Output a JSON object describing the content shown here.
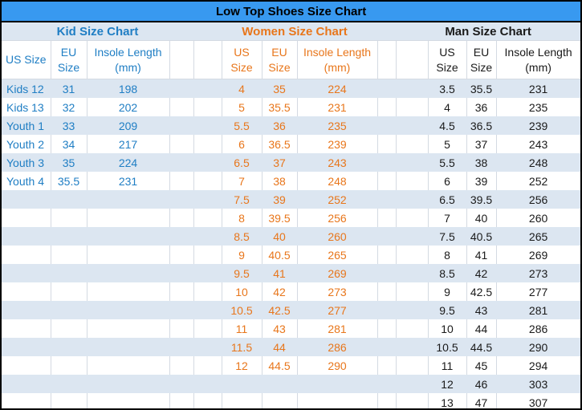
{
  "title": "Low Top Shoes Size Chart",
  "colors": {
    "title_bar_bg": "#3899F0",
    "band_row_bg": "#DCE6F1",
    "grid_line": "#D4DAE2",
    "kid_accent": "#1F7EC4",
    "women_accent": "#E8761B",
    "man_accent": "#1A1A1A",
    "outer_border": "#000000"
  },
  "chart_data": [
    {
      "type": "table",
      "key": "kid",
      "name": "Kid Size Chart",
      "color": "#1F7EC4",
      "columns": [
        "US Size",
        "EU Size",
        "Insole Length (mm)"
      ],
      "column_lines": [
        [
          "US Size"
        ],
        [
          "EU",
          "Size"
        ],
        [
          "Insole Length",
          "(mm)"
        ]
      ],
      "rows": [
        [
          "Kids 12",
          "31",
          "198"
        ],
        [
          "Kids 13",
          "32",
          "202"
        ],
        [
          "Youth 1",
          "33",
          "209"
        ],
        [
          "Youth 2",
          "34",
          "217"
        ],
        [
          "Youth 3",
          "35",
          "224"
        ],
        [
          "Youth 4",
          "35.5",
          "231"
        ]
      ]
    },
    {
      "type": "table",
      "key": "women",
      "name": "Women Size Chart",
      "color": "#E8761B",
      "columns": [
        "US Size",
        "EU Size",
        "Insole Length (mm)"
      ],
      "column_lines": [
        [
          "US",
          "Size"
        ],
        [
          "EU",
          "Size"
        ],
        [
          "Insole Length",
          "(mm)"
        ]
      ],
      "rows": [
        [
          "4",
          "35",
          "224"
        ],
        [
          "5",
          "35.5",
          "231"
        ],
        [
          "5.5",
          "36",
          "235"
        ],
        [
          "6",
          "36.5",
          "239"
        ],
        [
          "6.5",
          "37",
          "243"
        ],
        [
          "7",
          "38",
          "248"
        ],
        [
          "7.5",
          "39",
          "252"
        ],
        [
          "8",
          "39.5",
          "256"
        ],
        [
          "8.5",
          "40",
          "260"
        ],
        [
          "9",
          "40.5",
          "265"
        ],
        [
          "9.5",
          "41",
          "269"
        ],
        [
          "10",
          "42",
          "273"
        ],
        [
          "10.5",
          "42.5",
          "277"
        ],
        [
          "11",
          "43",
          "281"
        ],
        [
          "11.5",
          "44",
          "286"
        ],
        [
          "12",
          "44.5",
          "290"
        ]
      ]
    },
    {
      "type": "table",
      "key": "man",
      "name": "Man Size Chart",
      "color": "#1A1A1A",
      "columns": [
        "US Size",
        "EU Size",
        "Insole Length (mm)"
      ],
      "column_lines": [
        [
          "US",
          "Size"
        ],
        [
          "EU",
          "Size"
        ],
        [
          "Insole Length",
          "(mm)"
        ]
      ],
      "rows": [
        [
          "3.5",
          "35.5",
          "231"
        ],
        [
          "4",
          "36",
          "235"
        ],
        [
          "4.5",
          "36.5",
          "239"
        ],
        [
          "5",
          "37",
          "243"
        ],
        [
          "5.5",
          "38",
          "248"
        ],
        [
          "6",
          "39",
          "252"
        ],
        [
          "6.5",
          "39.5",
          "256"
        ],
        [
          "7",
          "40",
          "260"
        ],
        [
          "7.5",
          "40.5",
          "265"
        ],
        [
          "8",
          "41",
          "269"
        ],
        [
          "8.5",
          "42",
          "273"
        ],
        [
          "9",
          "42.5",
          "277"
        ],
        [
          "9.5",
          "43",
          "281"
        ],
        [
          "10",
          "44",
          "286"
        ],
        [
          "10.5",
          "44.5",
          "290"
        ],
        [
          "11",
          "45",
          "294"
        ],
        [
          "12",
          "46",
          "303"
        ],
        [
          "13",
          "47",
          "307"
        ]
      ]
    }
  ],
  "layout_rows": 18
}
